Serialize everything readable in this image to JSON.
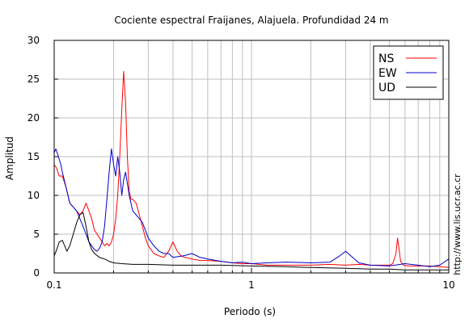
{
  "chart_data": {
    "type": "line",
    "title": "Cociente espectral Fraijanes, Alajuela. Profundidad 24 m",
    "xlabel": "Periodo (s)",
    "ylabel": "Amplitud",
    "x_scale": "log",
    "xlim": [
      0.1,
      10
    ],
    "ylim": [
      0,
      30
    ],
    "x_ticks": [
      0.1,
      1,
      10
    ],
    "x_tick_labels": [
      "0.1",
      "1",
      "10"
    ],
    "y_ticks": [
      0,
      5,
      10,
      15,
      20,
      25,
      30
    ],
    "y_tick_labels": [
      "0",
      "5",
      "10",
      "15",
      "20",
      "25",
      "30"
    ],
    "grid": true,
    "legend_position": "top-right",
    "credit": "http://www.lis.ucr.ac.cr",
    "series": [
      {
        "name": "NS",
        "color": "#ff0000",
        "x": [
          0.1,
          0.103,
          0.106,
          0.11,
          0.115,
          0.12,
          0.125,
          0.13,
          0.135,
          0.14,
          0.145,
          0.15,
          0.155,
          0.16,
          0.165,
          0.17,
          0.175,
          0.18,
          0.185,
          0.19,
          0.195,
          0.2,
          0.205,
          0.21,
          0.215,
          0.22,
          0.225,
          0.23,
          0.235,
          0.24,
          0.245,
          0.25,
          0.26,
          0.27,
          0.28,
          0.29,
          0.3,
          0.32,
          0.34,
          0.36,
          0.38,
          0.4,
          0.42,
          0.44,
          0.46,
          0.5,
          0.55,
          0.6,
          0.7,
          0.8,
          0.9,
          1.0,
          1.2,
          1.5,
          2.0,
          2.5,
          3.0,
          3.5,
          4.0,
          4.5,
          5.0,
          5.2,
          5.4,
          5.5,
          5.6,
          5.7,
          5.9,
          6.2,
          7.0,
          8.0,
          9.0,
          10.0
        ],
        "values": [
          14.0,
          13.5,
          12.5,
          12.5,
          11.0,
          9.0,
          8.5,
          8.0,
          7.5,
          8.0,
          9.0,
          8.0,
          7.0,
          5.5,
          5.0,
          4.5,
          4.0,
          3.5,
          3.8,
          3.5,
          4.0,
          5.0,
          7.0,
          10.0,
          15.0,
          21.0,
          26.0,
          22.0,
          15.0,
          10.5,
          9.5,
          9.5,
          9.0,
          7.5,
          6.0,
          4.5,
          3.5,
          2.5,
          2.2,
          2.0,
          2.8,
          4.0,
          2.8,
          2.2,
          2.0,
          1.8,
          1.6,
          1.6,
          1.5,
          1.3,
          1.2,
          1.2,
          1.0,
          1.0,
          1.0,
          1.1,
          1.0,
          1.1,
          1.0,
          1.0,
          1.0,
          1.2,
          2.5,
          4.5,
          3.0,
          1.5,
          1.0,
          0.9,
          0.9,
          0.9,
          0.8,
          0.7
        ]
      },
      {
        "name": "EW",
        "color": "#0000cc",
        "x": [
          0.1,
          0.102,
          0.105,
          0.108,
          0.11,
          0.115,
          0.12,
          0.125,
          0.13,
          0.135,
          0.14,
          0.145,
          0.15,
          0.155,
          0.16,
          0.165,
          0.17,
          0.175,
          0.18,
          0.185,
          0.19,
          0.195,
          0.2,
          0.205,
          0.21,
          0.215,
          0.22,
          0.225,
          0.23,
          0.24,
          0.25,
          0.26,
          0.27,
          0.28,
          0.29,
          0.3,
          0.32,
          0.34,
          0.36,
          0.38,
          0.4,
          0.45,
          0.5,
          0.55,
          0.6,
          0.7,
          0.8,
          0.9,
          1.0,
          1.2,
          1.5,
          2.0,
          2.5,
          2.8,
          3.0,
          3.5,
          4.0,
          5.0,
          6.0,
          7.0,
          8.0,
          9.0,
          10.0
        ],
        "values": [
          15.5,
          16.0,
          15.0,
          14.0,
          13.0,
          11.0,
          9.0,
          8.5,
          8.0,
          7.0,
          6.0,
          5.0,
          4.0,
          3.5,
          3.0,
          2.8,
          3.2,
          4.0,
          6.0,
          9.5,
          13.0,
          16.0,
          14.0,
          12.5,
          15.0,
          13.0,
          10.0,
          12.0,
          13.0,
          10.0,
          8.0,
          7.5,
          7.0,
          6.5,
          5.5,
          4.5,
          3.5,
          2.8,
          2.5,
          2.5,
          2.0,
          2.2,
          2.5,
          2.0,
          1.8,
          1.5,
          1.3,
          1.4,
          1.2,
          1.3,
          1.4,
          1.3,
          1.4,
          2.2,
          2.8,
          1.3,
          1.0,
          0.9,
          1.2,
          1.0,
          0.8,
          1.0,
          1.8
        ]
      },
      {
        "name": "UD",
        "color": "#000000",
        "x": [
          0.1,
          0.103,
          0.106,
          0.11,
          0.113,
          0.116,
          0.12,
          0.125,
          0.13,
          0.135,
          0.14,
          0.145,
          0.15,
          0.155,
          0.16,
          0.17,
          0.18,
          0.19,
          0.2,
          0.22,
          0.25,
          0.3,
          0.4,
          0.5,
          0.7,
          1.0,
          1.5,
          2.0,
          3.0,
          4.0,
          5.0,
          6.0,
          7.0,
          8.0,
          10.0
        ],
        "values": [
          2.2,
          3.0,
          4.0,
          4.2,
          3.5,
          2.8,
          3.5,
          5.0,
          6.5,
          7.5,
          7.8,
          6.0,
          4.0,
          3.0,
          2.5,
          2.0,
          1.8,
          1.5,
          1.3,
          1.2,
          1.1,
          1.1,
          1.0,
          1.0,
          1.0,
          0.9,
          0.8,
          0.7,
          0.6,
          0.5,
          0.5,
          0.4,
          0.4,
          0.4,
          0.4
        ]
      }
    ]
  }
}
